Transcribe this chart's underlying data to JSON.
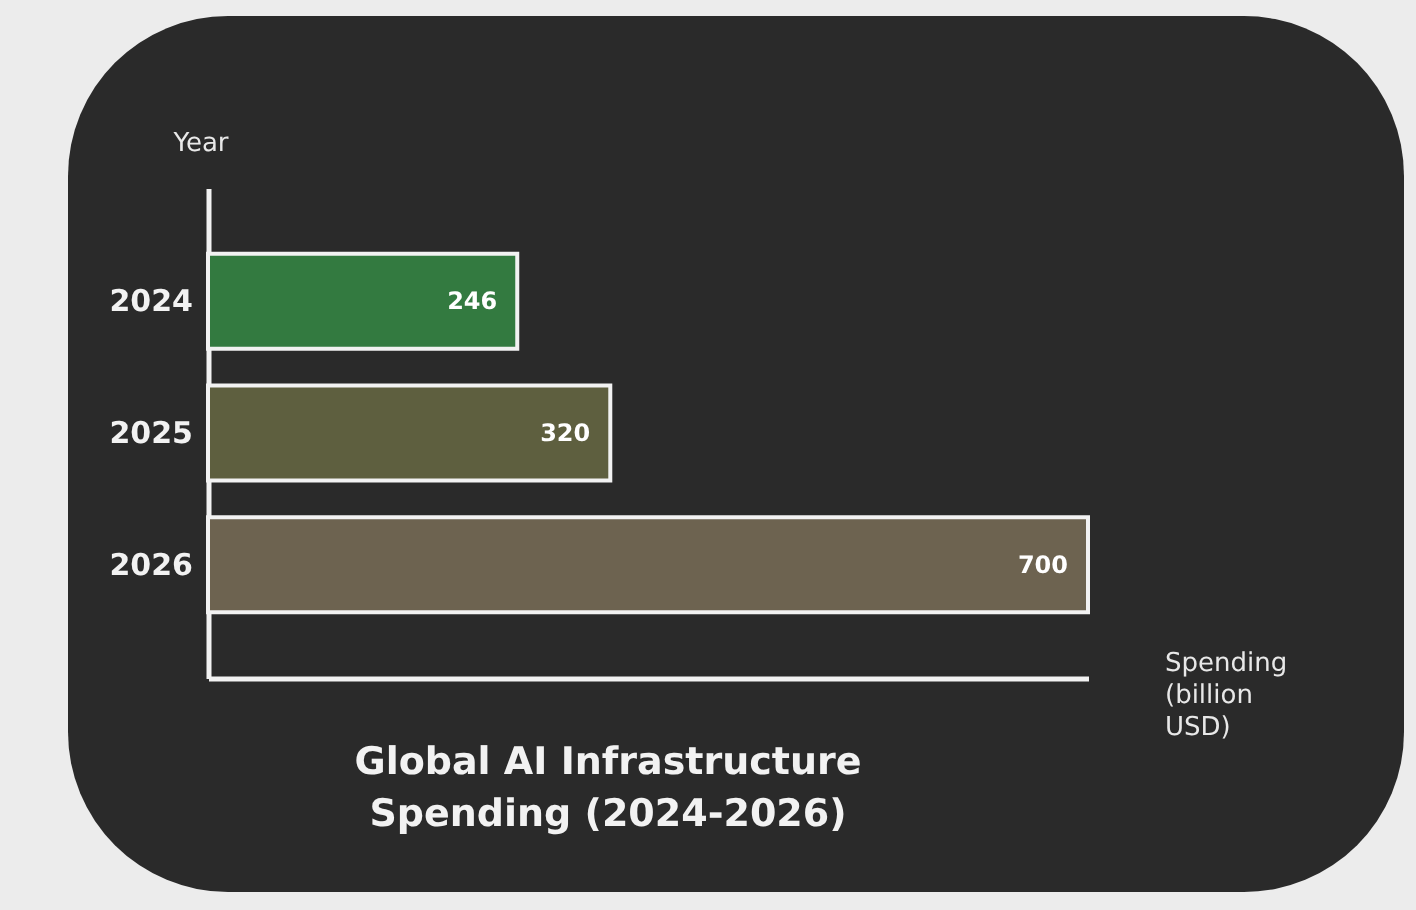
{
  "chart_data": {
    "type": "bar",
    "orientation": "horizontal",
    "title": "Global AI Infrastructure Spending (2024-2026)",
    "xlabel": "Spending (billion USD)",
    "ylabel": "Year",
    "categories": [
      "2024",
      "2025",
      "2026"
    ],
    "values": [
      246,
      320,
      700
    ],
    "colors": [
      "#337a40",
      "#5e5f3f",
      "#6d6350"
    ],
    "data_labels": true,
    "tick_labels": "y",
    "grid": false,
    "legend": false
  }
}
